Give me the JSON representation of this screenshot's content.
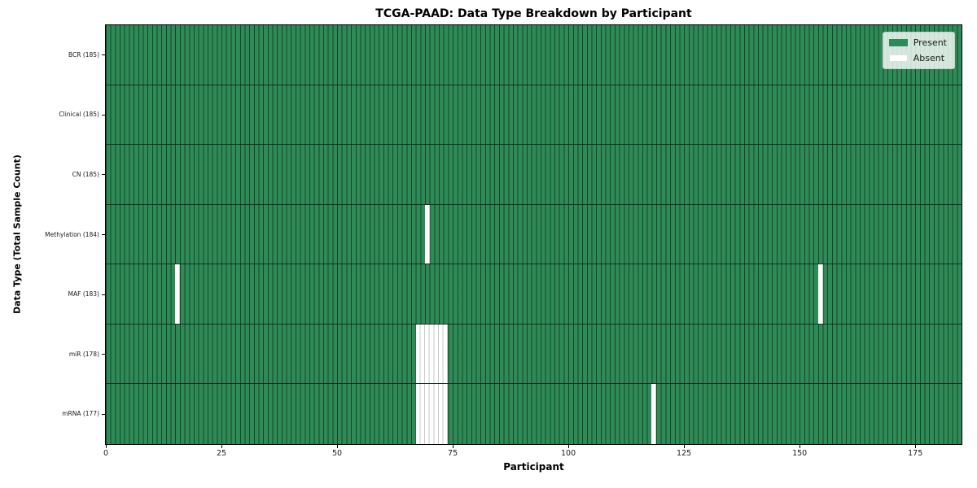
{
  "chart_data": {
    "type": "heatmap",
    "title": "TCGA-PAAD: Data Type Breakdown by Participant",
    "xlabel": "Participant",
    "ylabel": "Data Type (Total Sample Count)",
    "n_participants": 185,
    "xlim": [
      0,
      185
    ],
    "x_ticks": [
      0,
      25,
      50,
      75,
      100,
      125,
      150,
      175
    ],
    "grid": false,
    "legend_position": "upper right",
    "legend": [
      {
        "label": "Present",
        "color": "#2e8b57"
      },
      {
        "label": "Absent",
        "color": "#ffffff"
      }
    ],
    "rows": [
      {
        "data_type": "BCR",
        "total_samples": 185,
        "tick_label": "BCR (185)",
        "absent_participant_indices": []
      },
      {
        "data_type": "Clinical",
        "total_samples": 185,
        "tick_label": "Clinical (185)",
        "absent_participant_indices": []
      },
      {
        "data_type": "CN",
        "total_samples": 185,
        "tick_label": "CN (185)",
        "absent_participant_indices": []
      },
      {
        "data_type": "Methylation",
        "total_samples": 184,
        "tick_label": "Methylation (184)",
        "absent_participant_indices": [
          69
        ]
      },
      {
        "data_type": "MAF",
        "total_samples": 183,
        "tick_label": "MAF (183)",
        "absent_participant_indices": [
          15,
          154
        ]
      },
      {
        "data_type": "miR",
        "total_samples": 178,
        "tick_label": "miR (178)",
        "absent_participant_indices": [
          67,
          68,
          69,
          70,
          71,
          72,
          73
        ]
      },
      {
        "data_type": "mRNA",
        "total_samples": 177,
        "tick_label": "mRNA (177)",
        "absent_participant_indices": [
          67,
          68,
          69,
          70,
          71,
          72,
          73,
          118
        ]
      }
    ],
    "colors": {
      "present": "#2e8b57",
      "absent": "#ffffff",
      "bar_edge_on_green": "rgba(0, 0, 0, 0.5)",
      "bar_edge_on_white": "#c9c9c9",
      "row_separator": "rgba(22, 32, 27, 0.85)",
      "plot_border": "#000000"
    }
  }
}
